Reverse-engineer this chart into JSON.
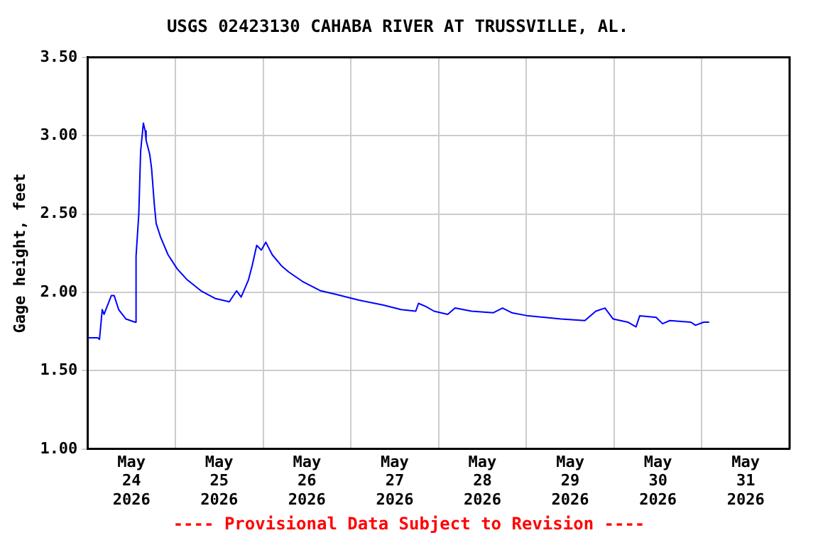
{
  "chart_data": {
    "type": "line",
    "title": "USGS 02423130 CAHABA RIVER AT TRUSSVILLE, AL.",
    "ylabel": "Gage height, feet",
    "annotations": [
      "---- Provisional Data Subject to Revision ----"
    ],
    "x": [
      "2026-05-24T00:00",
      "2026-05-24T02:45",
      "2026-05-24T03:15",
      "2026-05-24T04:00",
      "2026-05-24T04:30",
      "2026-05-24T06:30",
      "2026-05-24T07:15",
      "2026-05-24T08:30",
      "2026-05-24T10:30",
      "2026-05-24T13:00",
      "2026-05-24T13:15",
      "2026-05-24T14:00",
      "2026-05-24T14:30",
      "2026-05-24T15:15",
      "2026-05-24T15:45",
      "2026-05-24T16:00",
      "2026-05-24T17:00",
      "2026-05-24T17:30",
      "2026-05-24T18:15",
      "2026-05-24T18:45",
      "2026-05-24T20:00",
      "2026-05-24T22:00",
      "2026-05-25T00:30",
      "2026-05-25T03:15",
      "2026-05-25T07:00",
      "2026-05-25T11:00",
      "2026-05-25T14:45",
      "2026-05-25T16:45",
      "2026-05-25T18:00",
      "2026-05-25T20:00",
      "2026-05-25T21:00",
      "2026-05-25T22:15",
      "2026-05-25T23:30",
      "2026-05-26T00:45",
      "2026-05-26T02:30",
      "2026-05-26T05:00",
      "2026-05-26T07:00",
      "2026-05-26T10:45",
      "2026-05-26T15:45",
      "2026-05-26T19:30",
      "2026-05-27T02:15",
      "2026-05-27T08:45",
      "2026-05-27T13:45",
      "2026-05-27T17:45",
      "2026-05-27T18:30",
      "2026-05-27T20:30",
      "2026-05-27T22:45",
      "2026-05-28T02:30",
      "2026-05-28T04:30",
      "2026-05-28T09:00",
      "2026-05-28T15:00",
      "2026-05-28T17:30",
      "2026-05-28T20:00",
      "2026-05-29T00:30",
      "2026-05-29T09:30",
      "2026-05-29T16:00",
      "2026-05-29T19:00",
      "2026-05-29T21:30",
      "2026-05-29T23:45",
      "2026-05-30T03:45",
      "2026-05-30T06:00",
      "2026-05-30T07:00",
      "2026-05-30T11:30",
      "2026-05-30T13:15",
      "2026-05-30T15:15",
      "2026-05-30T21:00",
      "2026-05-30T22:15",
      "2026-05-31T00:30",
      "2026-05-31T02:00"
    ],
    "series": [
      {
        "color": "#0000ff",
        "values": [
          1.71,
          1.71,
          1.7,
          1.89,
          1.86,
          1.98,
          1.98,
          1.89,
          1.83,
          1.81,
          2.23,
          2.5,
          2.9,
          3.08,
          3.03,
          2.97,
          2.88,
          2.79,
          2.56,
          2.44,
          2.35,
          2.24,
          2.15,
          2.08,
          2.01,
          1.96,
          1.94,
          2.01,
          1.97,
          2.08,
          2.17,
          2.3,
          2.27,
          2.32,
          2.24,
          2.17,
          2.13,
          2.07,
          2.01,
          1.99,
          1.95,
          1.92,
          1.89,
          1.88,
          1.93,
          1.91,
          1.88,
          1.86,
          1.9,
          1.88,
          1.87,
          1.9,
          1.87,
          1.85,
          1.83,
          1.82,
          1.88,
          1.9,
          1.83,
          1.81,
          1.78,
          1.85,
          1.84,
          1.8,
          1.82,
          1.81,
          1.79,
          1.81,
          1.81
        ]
      }
    ],
    "xlim": [
      "2026-05-24T00:00",
      "2026-06-01T00:00"
    ],
    "xticks": [
      {
        "value": "2026-05-24T12:00",
        "label": "May 24 2026"
      },
      {
        "value": "2026-05-25T00:00",
        "label": null
      },
      {
        "value": "2026-05-25T12:00",
        "label": "May 25 2026"
      },
      {
        "value": "2026-05-26T00:00",
        "label": null
      },
      {
        "value": "2026-05-26T12:00",
        "label": "May 26 2026"
      },
      {
        "value": "2026-05-27T00:00",
        "label": null
      },
      {
        "value": "2026-05-27T12:00",
        "label": "May 27 2026"
      },
      {
        "value": "2026-05-28T00:00",
        "label": null
      },
      {
        "value": "2026-05-28T12:00",
        "label": "May 28 2026"
      },
      {
        "value": "2026-05-29T00:00",
        "label": null
      },
      {
        "value": "2026-05-29T12:00",
        "label": "May 29 2026"
      },
      {
        "value": "2026-05-30T00:00",
        "label": null
      },
      {
        "value": "2026-05-30T12:00",
        "label": "May 30 2026"
      },
      {
        "value": "2026-05-31T00:00",
        "label": null
      },
      {
        "value": "2026-05-31T12:00",
        "label": "May 31 2026"
      }
    ],
    "ylim": [
      1.0,
      3.5
    ],
    "yticks": [
      {
        "value": 1.0,
        "label": "1.00"
      },
      {
        "value": 1.5,
        "label": "1.50"
      },
      {
        "value": 2.0,
        "label": "2.00"
      },
      {
        "value": 2.5,
        "label": "2.50"
      },
      {
        "value": 3.0,
        "label": "3.00"
      },
      {
        "value": 3.5,
        "label": "3.50"
      }
    ],
    "grid": true,
    "legend": false,
    "marker": "none",
    "line_style": "solid"
  }
}
